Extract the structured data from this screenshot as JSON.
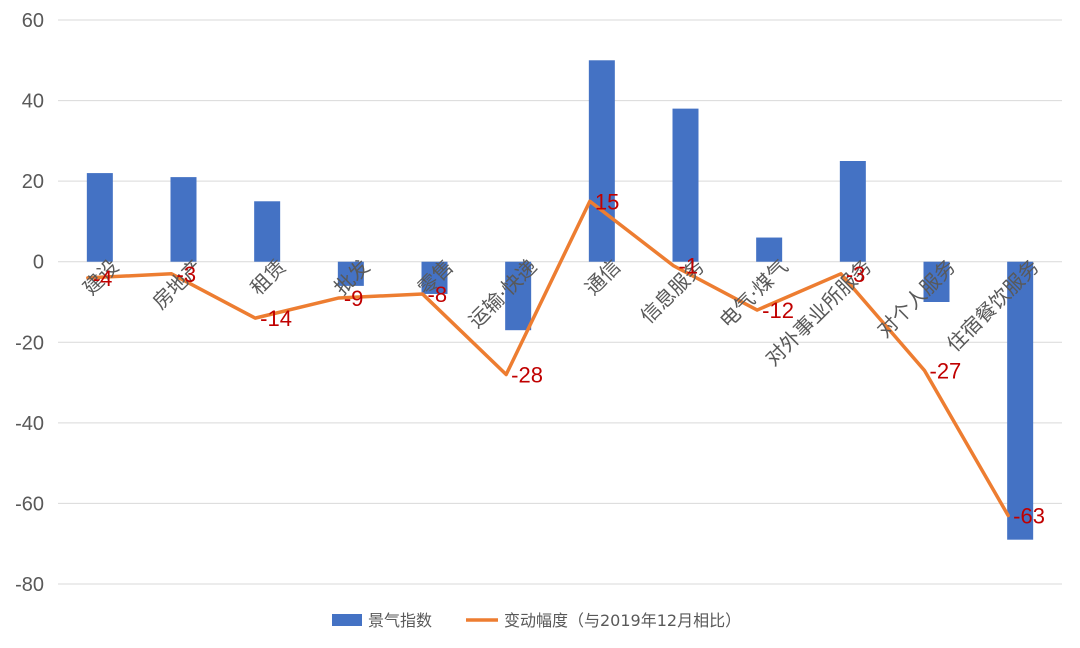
{
  "chart_data": {
    "type": "bar+line",
    "categories": [
      "建设",
      "房地产",
      "租赁",
      "批发",
      "零售",
      "运输·快递",
      "通信",
      "信息服务",
      "电气·煤气",
      "对外事业所服务",
      "对个人服务",
      "住宿餐饮服务"
    ],
    "series": [
      {
        "name": "景气指数",
        "type": "bar",
        "color": "#4472c4",
        "values": [
          22,
          21,
          15,
          -6,
          -8,
          -17,
          50,
          38,
          6,
          25,
          -10,
          -69
        ]
      },
      {
        "name": "变动幅度（与2019年12月相比）",
        "type": "line",
        "color": "#ed7d31",
        "values": [
          -4,
          -3,
          -14,
          -9,
          -8,
          -28,
          15,
          -1,
          -12,
          -3,
          -27,
          -63
        ],
        "labels": [
          "-4",
          "-3",
          "-14",
          "-9",
          "-8",
          "-28",
          "15",
          "-1",
          "-12",
          "-3",
          "-27",
          "-63"
        ]
      }
    ],
    "ylim": [
      -80,
      60
    ],
    "yticks": [
      "60",
      "40",
      "20",
      "0",
      "-20",
      "-40",
      "-60",
      "-80"
    ],
    "grid": true,
    "legend": "bottom",
    "title": "",
    "xlabel": "",
    "ylabel": "",
    "label_color": "#c00000",
    "grid_color": "#d9d9d9",
    "axis_text_color": "#595959"
  }
}
